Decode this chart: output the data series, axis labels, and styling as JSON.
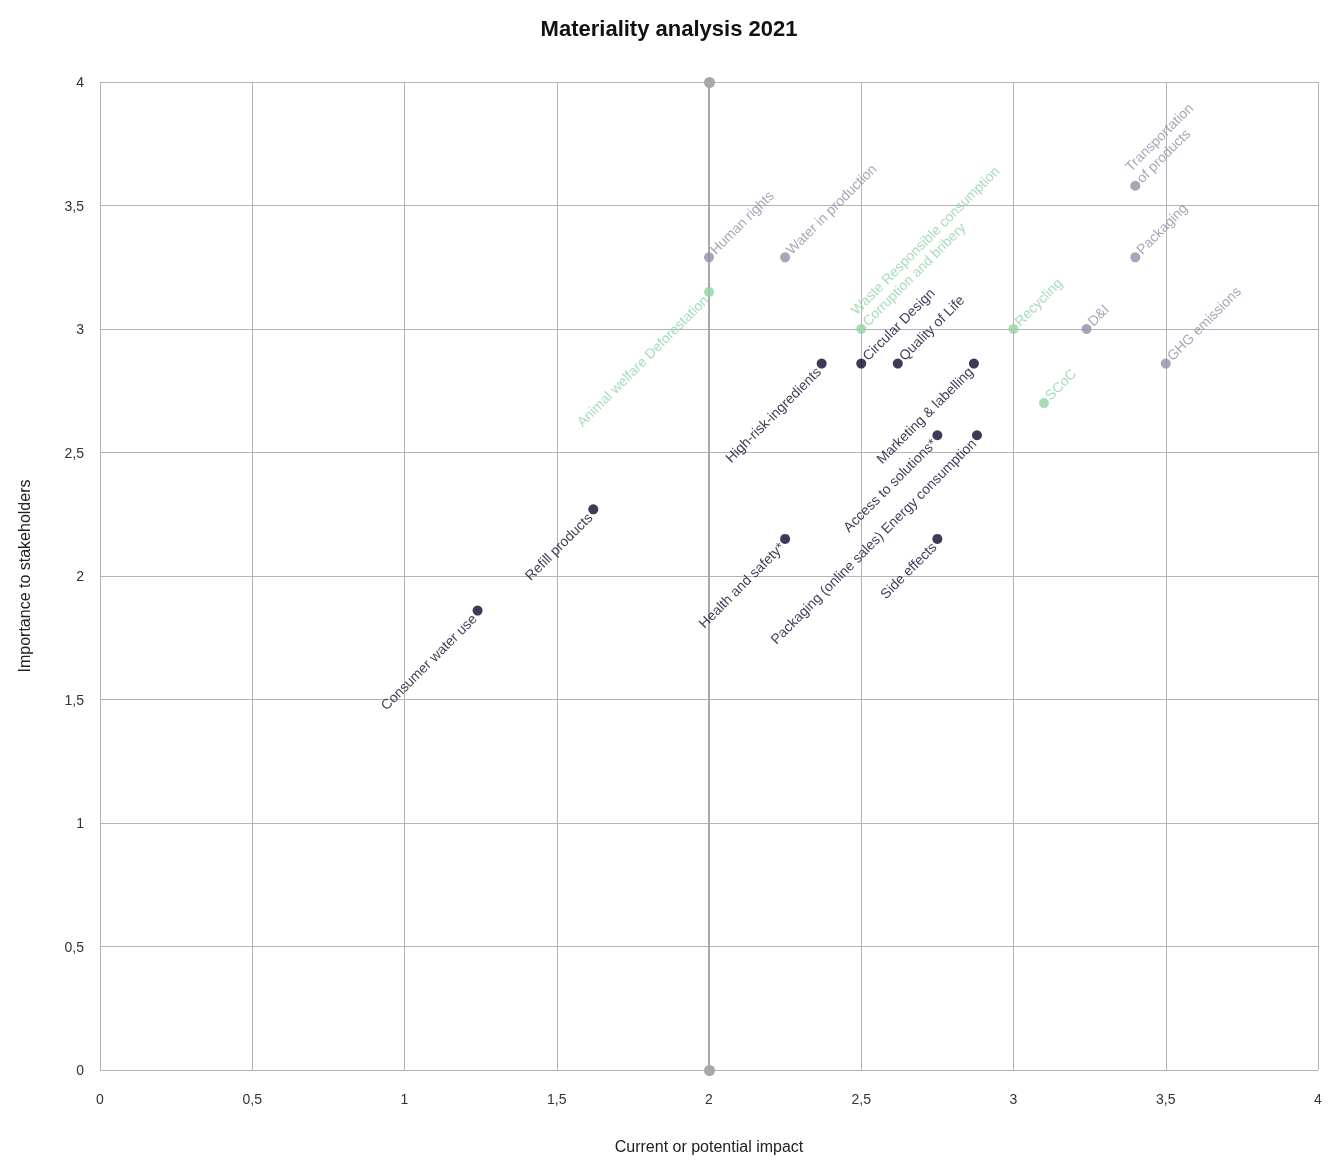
{
  "chart_data": {
    "type": "scatter",
    "title": "Materiality analysis 2021",
    "xlabel": "Current or potential impact",
    "ylabel": "Importance to stakeholders",
    "xlim": [
      0,
      4
    ],
    "ylim": [
      0,
      4
    ],
    "xticks": [
      0,
      {
        "value": 0.5,
        "label": "0,5"
      },
      1,
      {
        "value": 1.5,
        "label": "1,5"
      },
      2,
      {
        "value": 2.5,
        "label": "2,5"
      },
      3,
      {
        "value": 3.5,
        "label": "3,5"
      },
      4
    ],
    "yticks": [
      0,
      {
        "value": 0.5,
        "label": "0,5"
      },
      1,
      {
        "value": 1.5,
        "label": "1,5"
      },
      2,
      {
        "value": 2.5,
        "label": "2,5"
      },
      3,
      {
        "value": 3.5,
        "label": "3,5"
      },
      4
    ],
    "grid": true,
    "marker": "circle",
    "ref_lines": [
      {
        "axis": "x",
        "value": 2,
        "color": "#a8a8a8"
      }
    ],
    "series": [
      {
        "color": "#8e90a6",
        "x": [
          2.0,
          2.25,
          3.4,
          3.4,
          3.24,
          3.5
        ],
        "values": [
          3.29,
          3.29,
          3.58,
          3.29,
          3.0,
          2.86
        ],
        "value_labels": [
          "Human rights",
          "Water in production",
          "Transportation\nof products",
          "Packaging",
          "D&I",
          "GHG emissions"
        ]
      },
      {
        "color": "#92d3a8",
        "x": [
          2.0,
          2.5,
          3.0,
          3.1
        ],
        "values": [
          3.15,
          3.0,
          3.0,
          2.7
        ],
        "value_labels": [
          "Animal welfare Deforestation",
          "Waste Responsible consumption\nCorruption and bribery",
          "Recycling",
          "SCoC"
        ]
      },
      {
        "color": "#12082e",
        "x": [
          2.37,
          2.5,
          2.62,
          2.87,
          2.75,
          2.88,
          2.25,
          2.75,
          1.62,
          1.24
        ],
        "values": [
          2.86,
          2.86,
          2.86,
          2.86,
          2.57,
          2.57,
          2.15,
          2.15,
          2.27,
          1.86
        ],
        "value_labels": [
          "High-risk-ingredients",
          "Circular Design",
          "Quality of Life",
          "Marketing & labelling",
          "Access to solutions*",
          "Packaging (online sales) Energy consumption",
          "Health and safety*",
          "Side effects",
          "Refill products",
          "Consumer water use"
        ]
      }
    ]
  }
}
